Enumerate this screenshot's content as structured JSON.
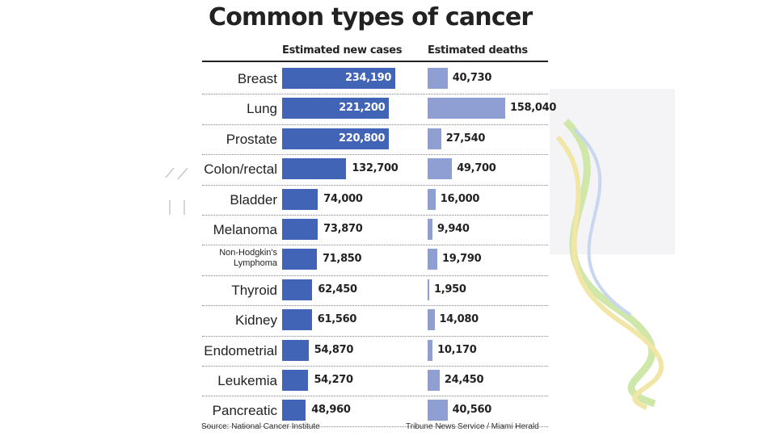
{
  "chart_data": {
    "type": "bar",
    "title": "Common types of cancer",
    "categories": [
      "Breast",
      "Lung",
      "Prostate",
      "Colon/rectal",
      "Bladder",
      "Melanoma",
      "Non-Hodgkin's Lymphoma",
      "Thyroid",
      "Kidney",
      "Endometrial",
      "Leukemia",
      "Pancreatic"
    ],
    "series": [
      {
        "name": "Estimated new cases",
        "values": [
          234190,
          221200,
          220800,
          132700,
          74000,
          73870,
          71850,
          62450,
          61560,
          54870,
          54270,
          48960
        ],
        "labels": [
          "234,190",
          "221,200",
          "220,800",
          "132,700",
          "74,000",
          "73,870",
          "71,850",
          "62,450",
          "61,560",
          "54,870",
          "54,270",
          "48,960"
        ]
      },
      {
        "name": "Estimated deaths",
        "values": [
          40730,
          158040,
          27540,
          49700,
          16000,
          9940,
          19790,
          1950,
          14080,
          10170,
          24450,
          40560
        ],
        "labels": [
          "40,730",
          "158,040",
          "27,540",
          "49,700",
          "16,000",
          "9,940",
          "19,790",
          "1,950",
          "14,080",
          "10,170",
          "24,450",
          "40,560"
        ]
      }
    ],
    "source": "Source: National Cancer Institute",
    "credit": "Tribune News Service / Miami Herald"
  },
  "colors": {
    "cases_bar": "#4264b6",
    "deaths_bar": "#8f9fd4",
    "text": "#222222"
  }
}
